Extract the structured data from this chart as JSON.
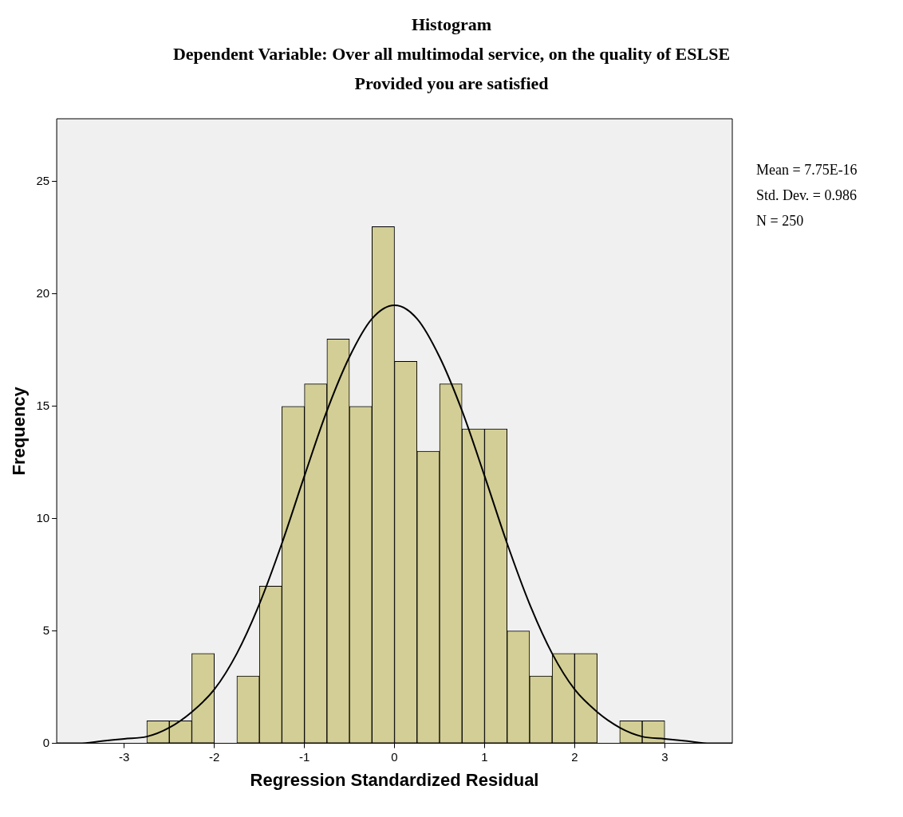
{
  "chart_data": {
    "type": "histogram",
    "title": "Histogram",
    "subtitle": "Dependent Variable: Over all multimodal service, on the quality of ESLSE\nProvided you are satisfied",
    "xlabel": "Regression Standardized Residual",
    "ylabel": "Frequency",
    "bins": [
      -2.75,
      -2.5,
      -2.25,
      -2,
      -1.75,
      -1.5,
      -1.25,
      -1,
      -0.75,
      -0.5,
      -0.25,
      0,
      0.25,
      0.5,
      0.75,
      1,
      1.25,
      1.5,
      1.75,
      2,
      2.25,
      2.5,
      2.75,
      3
    ],
    "series": [
      {
        "type": "histogram",
        "color": "#d3ce95",
        "values": [
          1,
          1,
          4,
          0,
          3,
          7,
          15,
          16,
          18,
          15,
          23,
          17,
          13,
          16,
          14,
          14,
          5,
          3,
          4,
          4,
          0,
          1,
          1
        ]
      },
      {
        "type": "line",
        "color": "#000000",
        "x": [
          -3.75,
          -3.5,
          -3.25,
          -3,
          -2.75,
          -2.5,
          -2.25,
          -2,
          -1.75,
          -1.5,
          -1.25,
          -1,
          -0.75,
          -0.5,
          -0.25,
          0,
          0.25,
          0.5,
          0.75,
          1,
          1.25,
          1.5,
          1.75,
          2,
          2.25,
          2.5,
          2.75,
          3,
          3.25,
          3.5,
          3.75
        ],
        "values": [
          0,
          0,
          0.1,
          0.2,
          0.3,
          0.7,
          1.4,
          2.4,
          4,
          6.2,
          8.9,
          11.9,
          14.8,
          17.2,
          18.9,
          19.5,
          18.9,
          17.2,
          14.8,
          11.9,
          8.9,
          6.2,
          4,
          2.4,
          1.4,
          0.7,
          0.3,
          0.2,
          0.1,
          0,
          0
        ]
      }
    ],
    "xlim": [
      -3.75,
      3.75
    ],
    "xticks": [
      -3,
      -2,
      -1,
      0,
      1,
      2,
      3
    ],
    "ylim": [
      0,
      27.8
    ],
    "yticks": [
      0,
      5,
      10,
      15,
      20,
      25
    ],
    "annotations": [
      "Mean = 7.75E-16",
      "Std. Dev. = 0.986",
      "N = 250"
    ]
  }
}
